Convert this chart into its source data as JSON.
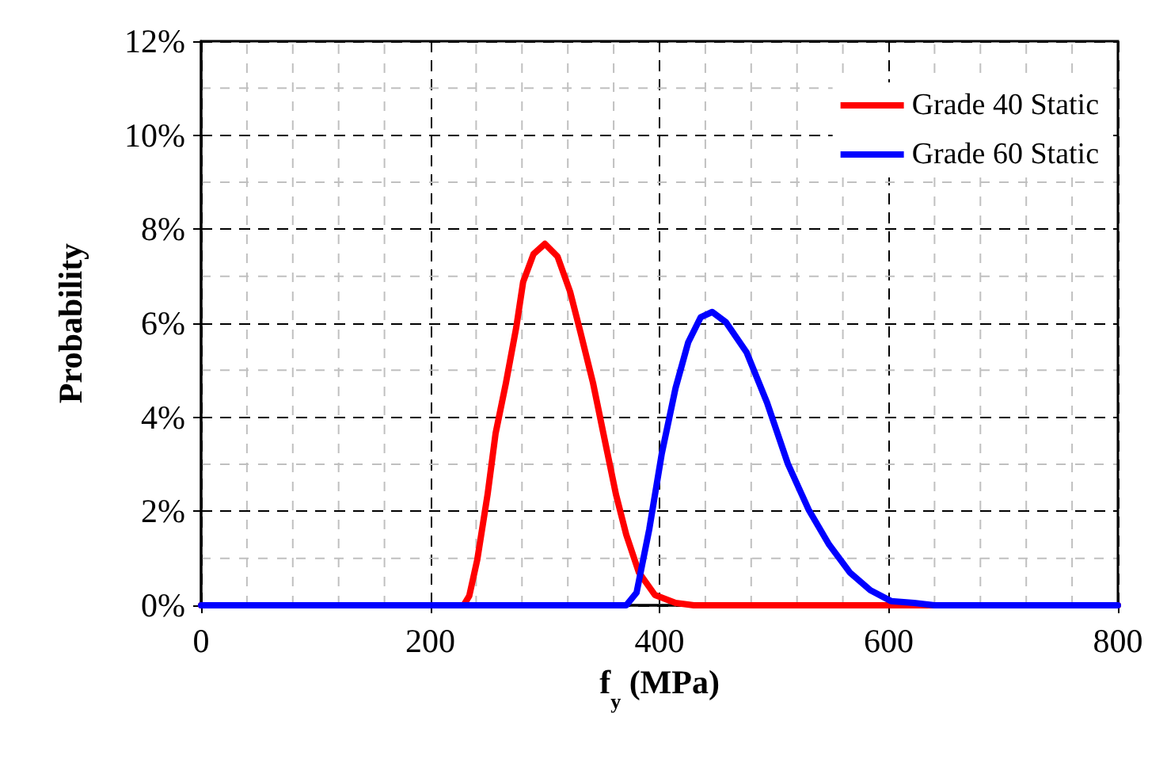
{
  "chart_data": {
    "type": "line",
    "xlabel": "f$_{y}$ (MPa)",
    "ylabel": "Probability",
    "xlim": [
      0,
      800
    ],
    "xticks": [
      0,
      200,
      400,
      600,
      800
    ],
    "ylim": [
      0,
      12
    ],
    "yticks": [
      {
        "value": 0,
        "label": "0%"
      },
      {
        "value": 2,
        "label": "2%"
      },
      {
        "value": 4,
        "label": "4%"
      },
      {
        "value": 6,
        "label": "6%"
      },
      {
        "value": 8,
        "label": "8%"
      },
      {
        "value": 10,
        "label": "10%"
      },
      {
        "value": 12,
        "label": "12%"
      }
    ],
    "grid": true,
    "legend": "top right",
    "marker": "none",
    "line_style": "solid",
    "series": [
      {
        "name": "Grade 40 Static",
        "color": "#ff0000",
        "x": [
          0,
          229,
          234,
          241,
          250,
          257,
          266,
          275,
          281,
          290,
          300,
          311,
          322,
          331,
          342,
          351,
          362,
          371,
          382,
          396,
          414,
          430,
          800
        ],
        "values": [
          0,
          0,
          0.2,
          0.97,
          2.36,
          3.66,
          4.73,
          5.91,
          6.88,
          7.47,
          7.69,
          7.42,
          6.67,
          5.81,
          4.73,
          3.66,
          2.36,
          1.5,
          0.7,
          0.22,
          0.05,
          0,
          0
        ]
      },
      {
        "name": "Grade 60 Static",
        "color": "#0000ff",
        "x": [
          0,
          371,
          380,
          391,
          402,
          414,
          425,
          436,
          446,
          458,
          476,
          494,
          512,
          530,
          548,
          566,
          584,
          602,
          622,
          640,
          800
        ],
        "values": [
          0,
          0,
          0.27,
          1.61,
          3.23,
          4.62,
          5.59,
          6.13,
          6.24,
          6.02,
          5.38,
          4.3,
          3.01,
          2.04,
          1.29,
          0.7,
          0.32,
          0.09,
          0.05,
          0,
          0
        ]
      }
    ]
  }
}
